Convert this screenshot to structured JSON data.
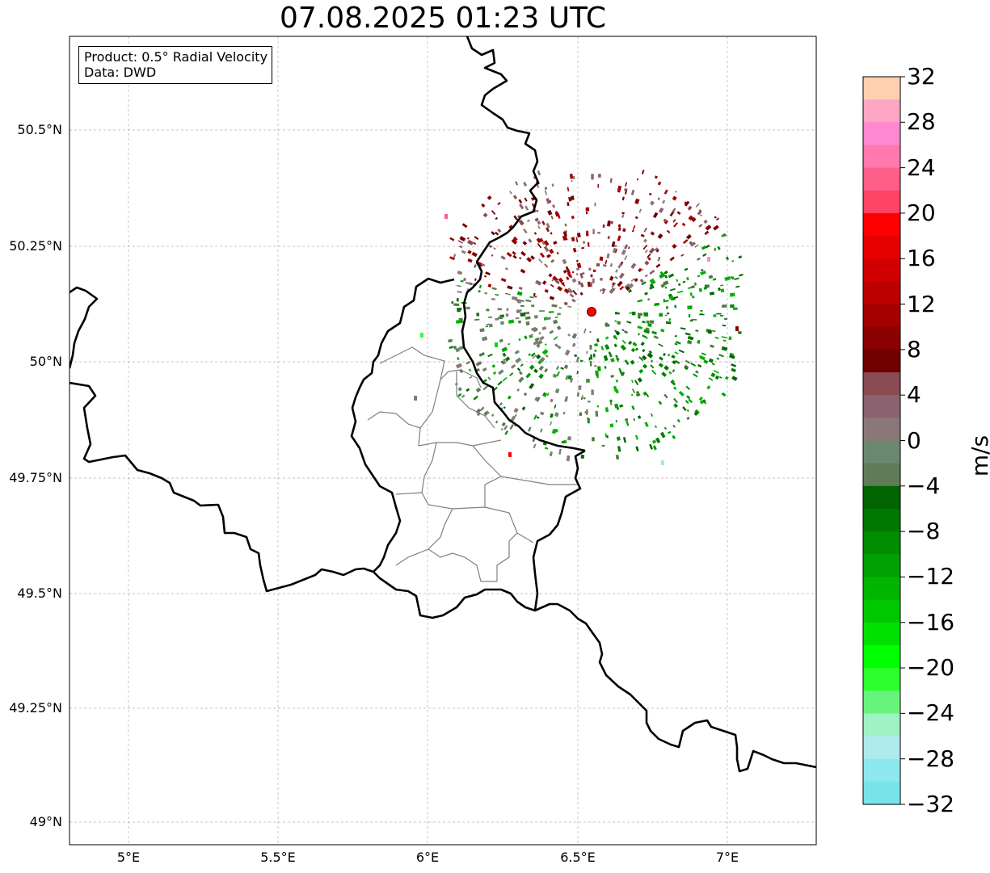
{
  "title": "07.08.2025 01:23 UTC",
  "info": {
    "product_line": "Product: 0.5° Radial Velocity",
    "data_line": "Data: DWD"
  },
  "lat_labels": [
    "50.5°N",
    "50.25°N",
    "50°N",
    "49.75°N",
    "49.5°N",
    "49.25°N",
    "49°N"
  ],
  "lon_labels": [
    "5°E",
    "5.5°E",
    "6°E",
    "6.5°E",
    "7°E"
  ],
  "colorbar": {
    "unit": "m/s",
    "ticks": [
      "32",
      "28",
      "24",
      "20",
      "16",
      "12",
      "8",
      "4",
      "0",
      "−4",
      "−8",
      "−12",
      "−16",
      "−20",
      "−24",
      "−28",
      "−32"
    ],
    "colors_top_to_bottom": [
      "#ffcfae",
      "#ffa6c4",
      "#ff88d0",
      "#ff78ae",
      "#ff5e88",
      "#ff4466",
      "#ff0000",
      "#e60000",
      "#d00000",
      "#bc0000",
      "#a40000",
      "#8c0000",
      "#700000",
      "#8a4a52",
      "#8a6270",
      "#8a7878",
      "#6a8870",
      "#5e7c58",
      "#006400",
      "#007800",
      "#008c00",
      "#00a000",
      "#00b400",
      "#00c800",
      "#00e100",
      "#00ff00",
      "#2cff2c",
      "#66f57a",
      "#9ef2c4",
      "#aeeaee",
      "#8ce8ee",
      "#78e4ea"
    ]
  },
  "radar_site_color": "#ff0000"
}
